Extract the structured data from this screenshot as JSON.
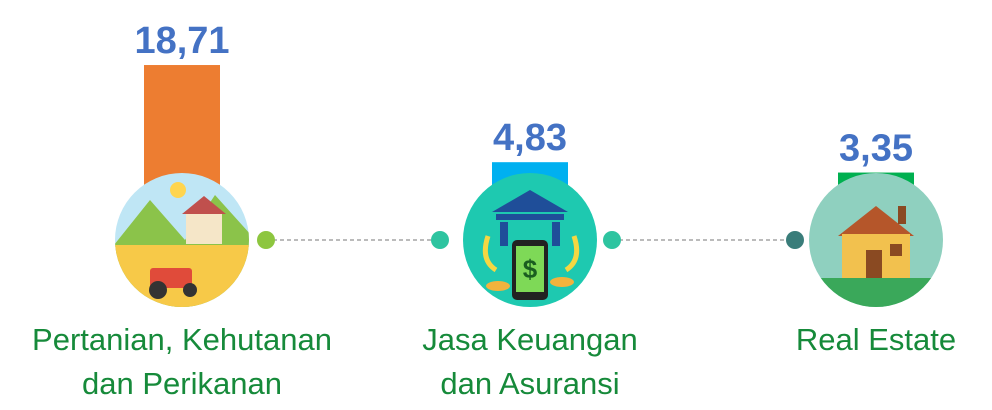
{
  "chart_data": {
    "type": "bar",
    "categories": [
      "Pertanian, Kehutanan dan Perikanan",
      "Jasa Keuangan dan Asuransi",
      "Real Estate"
    ],
    "values": [
      18.71,
      4.83,
      3.35
    ],
    "value_labels": [
      "18,71",
      "4,83",
      "3,35"
    ],
    "colors": [
      "#ed7d31",
      "#00b0f0",
      "#00b050"
    ]
  }
}
